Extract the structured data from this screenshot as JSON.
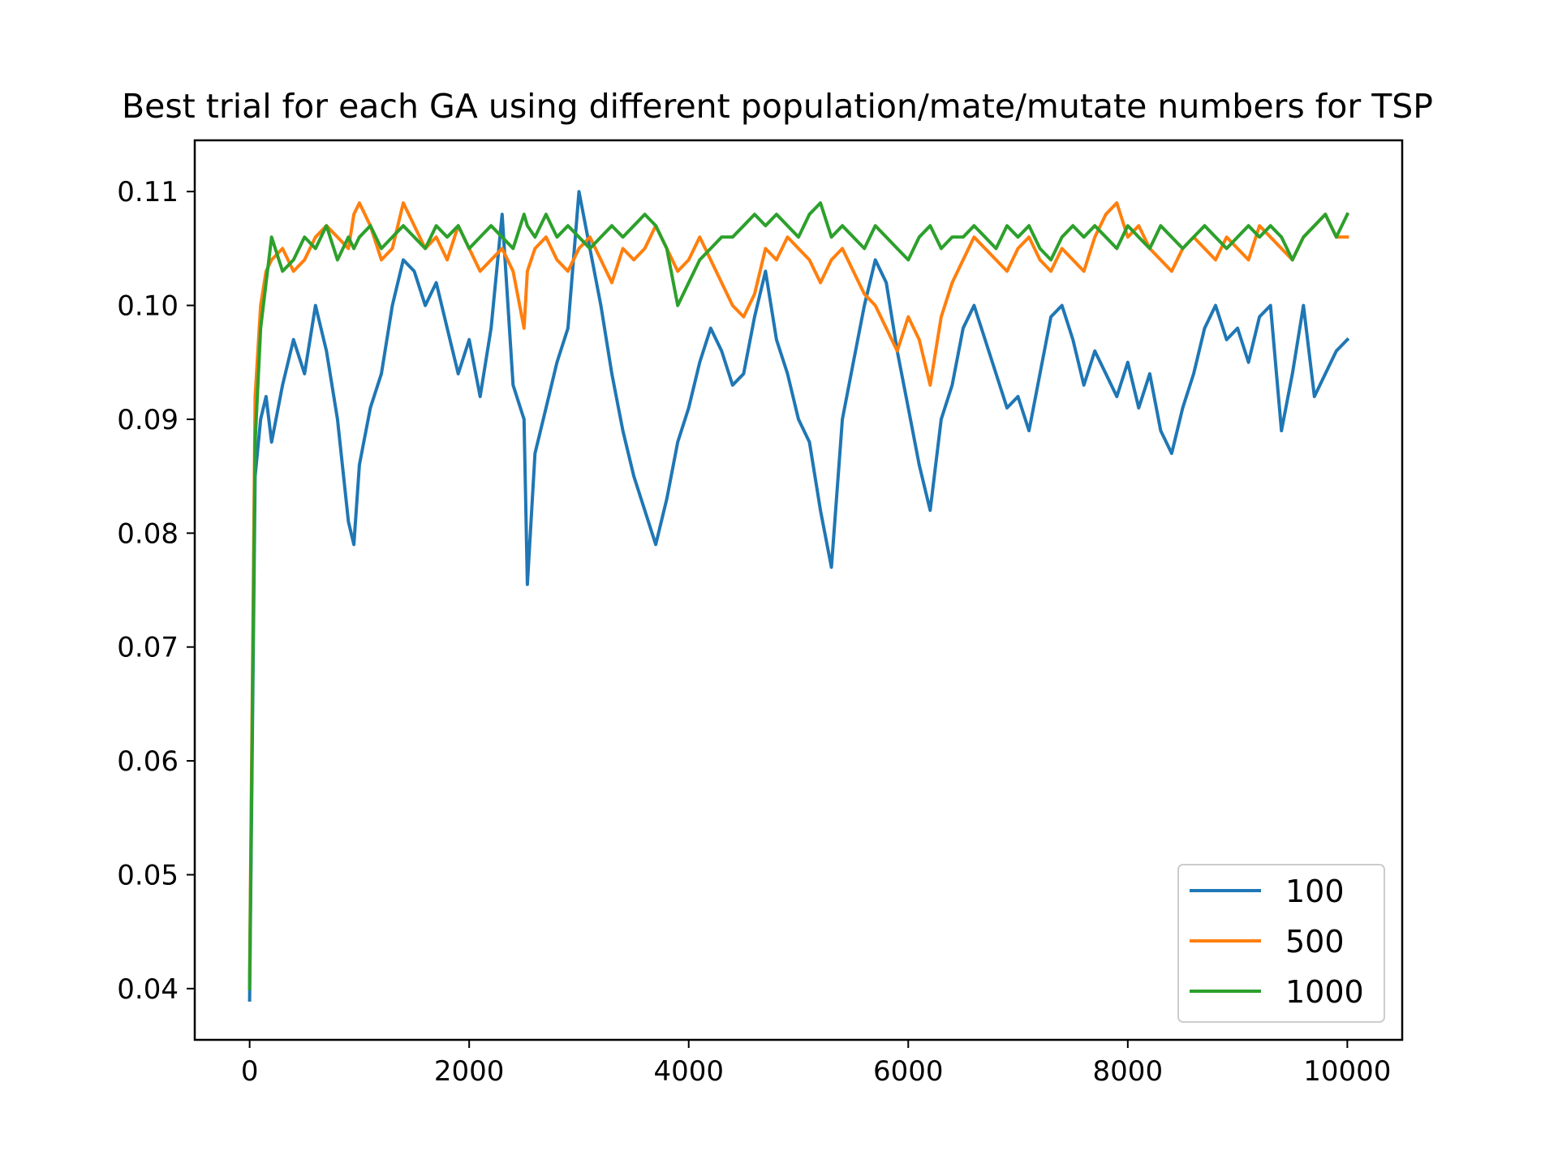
{
  "chart_data": {
    "type": "line",
    "title": "Best trial for each GA using different population/mate/mutate numbers for TSP",
    "xlabel": "",
    "ylabel": "",
    "xlim": [
      -500,
      10500
    ],
    "ylim": [
      0.0355,
      0.1145
    ],
    "x_ticks": [
      0,
      2000,
      4000,
      6000,
      8000,
      10000
    ],
    "x_tick_labels": [
      "0",
      "2000",
      "4000",
      "6000",
      "8000",
      "10000"
    ],
    "y_ticks": [
      0.04,
      0.05,
      0.06,
      0.07,
      0.08,
      0.09,
      0.1,
      0.11
    ],
    "y_tick_labels": [
      "0.04",
      "0.05",
      "0.06",
      "0.07",
      "0.08",
      "0.09",
      "0.10",
      "0.11"
    ],
    "grid": false,
    "legend": {
      "placement": "lower-right",
      "entries": [
        "100",
        "500",
        "1000"
      ]
    },
    "x": [
      0,
      50,
      100,
      150,
      200,
      300,
      400,
      500,
      600,
      700,
      800,
      900,
      950,
      1000,
      1100,
      1200,
      1300,
      1400,
      1500,
      1600,
      1700,
      1800,
      1900,
      2000,
      2100,
      2200,
      2300,
      2400,
      2500,
      2530,
      2600,
      2700,
      2800,
      2900,
      3000,
      3100,
      3200,
      3300,
      3400,
      3500,
      3600,
      3700,
      3800,
      3900,
      4000,
      4100,
      4200,
      4300,
      4400,
      4500,
      4600,
      4700,
      4800,
      4900,
      5000,
      5100,
      5200,
      5300,
      5400,
      5500,
      5600,
      5700,
      5800,
      5900,
      6000,
      6100,
      6200,
      6300,
      6400,
      6500,
      6600,
      6700,
      6800,
      6900,
      7000,
      7100,
      7200,
      7300,
      7400,
      7500,
      7600,
      7700,
      7800,
      7900,
      8000,
      8100,
      8200,
      8300,
      8400,
      8500,
      8600,
      8700,
      8800,
      8900,
      9000,
      9100,
      9200,
      9300,
      9400,
      9500,
      9600,
      9700,
      9800,
      9900,
      10000
    ],
    "series": [
      {
        "name": "100",
        "color": "#1f77b4",
        "values": [
          0.039,
          0.085,
          0.09,
          0.092,
          0.088,
          0.093,
          0.097,
          0.094,
          0.1,
          0.096,
          0.09,
          0.081,
          0.079,
          0.086,
          0.091,
          0.094,
          0.1,
          0.104,
          0.103,
          0.1,
          0.102,
          0.098,
          0.094,
          0.097,
          0.092,
          0.098,
          0.108,
          0.093,
          0.09,
          0.0755,
          0.087,
          0.091,
          0.095,
          0.098,
          0.11,
          0.105,
          0.1,
          0.094,
          0.089,
          0.085,
          0.082,
          0.079,
          0.083,
          0.088,
          0.091,
          0.095,
          0.098,
          0.096,
          0.093,
          0.094,
          0.099,
          0.103,
          0.097,
          0.094,
          0.09,
          0.088,
          0.082,
          0.077,
          0.09,
          0.095,
          0.1,
          0.104,
          0.102,
          0.096,
          0.091,
          0.086,
          0.082,
          0.09,
          0.093,
          0.098,
          0.1,
          0.097,
          0.094,
          0.091,
          0.092,
          0.089,
          0.094,
          0.099,
          0.1,
          0.097,
          0.093,
          0.096,
          0.094,
          0.092,
          0.095,
          0.091,
          0.094,
          0.089,
          0.087,
          0.091,
          0.094,
          0.098,
          0.1,
          0.097,
          0.098,
          0.095,
          0.099,
          0.1,
          0.089,
          0.094,
          0.1,
          0.092,
          0.094,
          0.096,
          0.097
        ]
      },
      {
        "name": "500",
        "color": "#ff7f0e",
        "values": [
          0.041,
          0.092,
          0.1,
          0.103,
          0.104,
          0.105,
          0.103,
          0.104,
          0.106,
          0.107,
          0.106,
          0.105,
          0.108,
          0.109,
          0.107,
          0.104,
          0.105,
          0.109,
          0.107,
          0.105,
          0.106,
          0.104,
          0.107,
          0.105,
          0.103,
          0.104,
          0.105,
          0.103,
          0.098,
          0.103,
          0.105,
          0.106,
          0.104,
          0.103,
          0.105,
          0.106,
          0.104,
          0.102,
          0.105,
          0.104,
          0.105,
          0.107,
          0.105,
          0.103,
          0.104,
          0.106,
          0.104,
          0.102,
          0.1,
          0.099,
          0.101,
          0.105,
          0.104,
          0.106,
          0.105,
          0.104,
          0.102,
          0.104,
          0.105,
          0.103,
          0.101,
          0.1,
          0.098,
          0.096,
          0.099,
          0.097,
          0.093,
          0.099,
          0.102,
          0.104,
          0.106,
          0.105,
          0.104,
          0.103,
          0.105,
          0.106,
          0.104,
          0.103,
          0.105,
          0.104,
          0.103,
          0.106,
          0.108,
          0.109,
          0.106,
          0.107,
          0.105,
          0.104,
          0.103,
          0.105,
          0.106,
          0.105,
          0.104,
          0.106,
          0.105,
          0.104,
          0.107,
          0.106,
          0.105,
          0.104,
          0.106,
          0.107,
          0.108,
          0.106,
          0.106
        ]
      },
      {
        "name": "1000",
        "color": "#2ca02c",
        "values": [
          0.04,
          0.088,
          0.098,
          0.102,
          0.106,
          0.103,
          0.104,
          0.106,
          0.105,
          0.107,
          0.104,
          0.106,
          0.105,
          0.106,
          0.107,
          0.105,
          0.106,
          0.107,
          0.106,
          0.105,
          0.107,
          0.106,
          0.107,
          0.105,
          0.106,
          0.107,
          0.106,
          0.105,
          0.108,
          0.107,
          0.106,
          0.108,
          0.106,
          0.107,
          0.106,
          0.105,
          0.106,
          0.107,
          0.106,
          0.107,
          0.108,
          0.107,
          0.105,
          0.1,
          0.102,
          0.104,
          0.105,
          0.106,
          0.106,
          0.107,
          0.108,
          0.107,
          0.108,
          0.107,
          0.106,
          0.108,
          0.109,
          0.106,
          0.107,
          0.106,
          0.105,
          0.107,
          0.106,
          0.105,
          0.104,
          0.106,
          0.107,
          0.105,
          0.106,
          0.106,
          0.107,
          0.106,
          0.105,
          0.107,
          0.106,
          0.107,
          0.105,
          0.104,
          0.106,
          0.107,
          0.106,
          0.107,
          0.106,
          0.105,
          0.107,
          0.106,
          0.105,
          0.107,
          0.106,
          0.105,
          0.106,
          0.107,
          0.106,
          0.105,
          0.106,
          0.107,
          0.106,
          0.107,
          0.106,
          0.104,
          0.106,
          0.107,
          0.108,
          0.106,
          0.108
        ]
      }
    ]
  }
}
